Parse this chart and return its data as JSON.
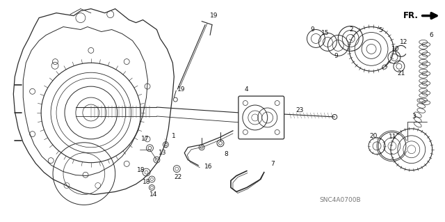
{
  "bg_color": "#ffffff",
  "fig_width": 6.4,
  "fig_height": 3.19,
  "watermark": "SNC4A0700B",
  "line_color": "#2a2a2a",
  "label_fontsize": 6.0,
  "label_color": "#111111"
}
